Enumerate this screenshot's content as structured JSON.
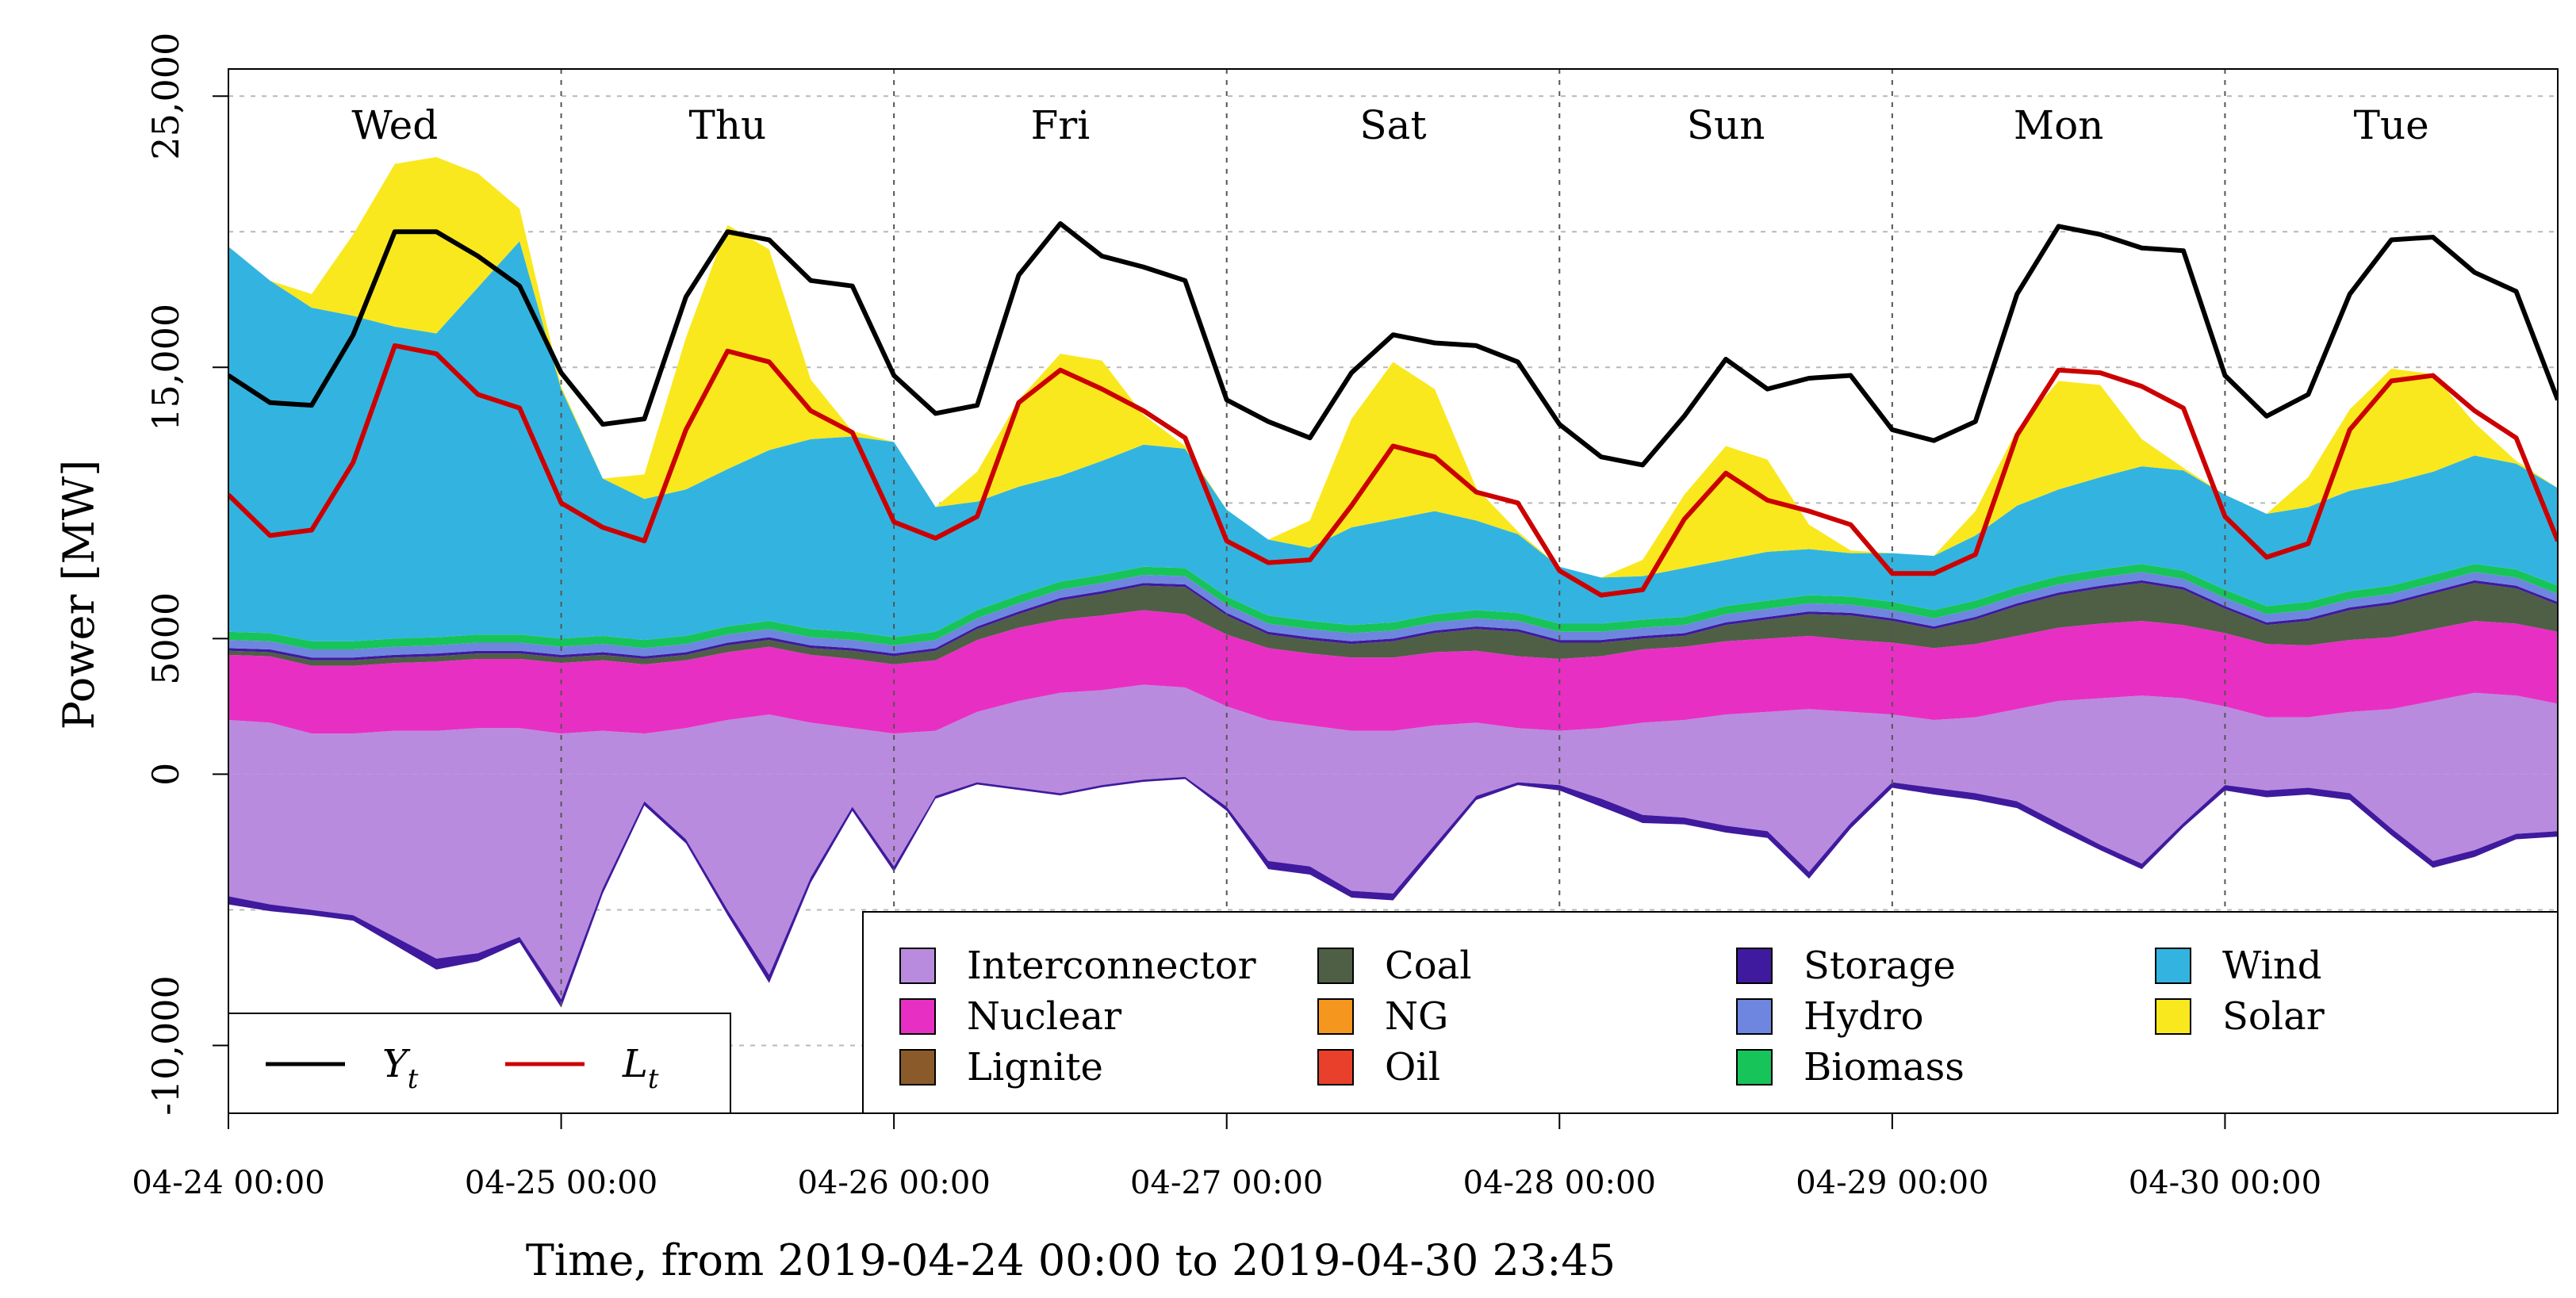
{
  "chart_data": {
    "type": "area",
    "title": "",
    "xlabel": "Time, from 2019-04-24 00:00 to 2019-04-30 23:45",
    "ylabel": "Power [MW]",
    "xlim_hours": [
      0,
      168
    ],
    "ylim": [
      -12500,
      26000
    ],
    "y_ticks": [
      {
        "value": 25000,
        "label": "25,000"
      },
      {
        "value": 15000,
        "label": "15,000"
      },
      {
        "value": 5000,
        "label": "5000"
      },
      {
        "value": 0,
        "label": "0"
      },
      {
        "value": -10000,
        "label": "-10,000"
      }
    ],
    "y_grid_values": [
      25000,
      20000,
      15000,
      10000,
      5000,
      0,
      -5000,
      -10000
    ],
    "x_ticks": [
      {
        "hour": 0,
        "label": "04-24 00:00"
      },
      {
        "hour": 24,
        "label": "04-25 00:00"
      },
      {
        "hour": 48,
        "label": "04-26 00:00"
      },
      {
        "hour": 72,
        "label": "04-27 00:00"
      },
      {
        "hour": 96,
        "label": "04-28 00:00"
      },
      {
        "hour": 120,
        "label": "04-29 00:00"
      },
      {
        "hour": 144,
        "label": "04-30 00:00"
      }
    ],
    "day_labels": [
      {
        "hour": 12,
        "label": "Wed"
      },
      {
        "hour": 36,
        "label": "Thu"
      },
      {
        "hour": 60,
        "label": "Fri"
      },
      {
        "hour": 84,
        "label": "Sat"
      },
      {
        "hour": 108,
        "label": "Sun"
      },
      {
        "hour": 132,
        "label": "Mon"
      },
      {
        "hour": 156,
        "label": "Tue"
      }
    ],
    "day_separators_hours": [
      24,
      48,
      72,
      96,
      120,
      144
    ],
    "x_hours": [
      0,
      3,
      6,
      9,
      12,
      15,
      18,
      21,
      24,
      27,
      30,
      33,
      36,
      39,
      42,
      45,
      48,
      51,
      54,
      57,
      60,
      63,
      66,
      69,
      72,
      75,
      78,
      81,
      84,
      87,
      90,
      93,
      96,
      99,
      102,
      105,
      108,
      111,
      114,
      117,
      120,
      123,
      126,
      129,
      132,
      135,
      138,
      141,
      144,
      147,
      150,
      153,
      156,
      159,
      162,
      165,
      168
    ],
    "series": [
      {
        "name": "Interconnector",
        "color": "#B98BDE",
        "values": [
          2000,
          1900,
          1500,
          1500,
          1600,
          1600,
          1700,
          1700,
          1500,
          1600,
          1500,
          1700,
          2000,
          2200,
          1900,
          1700,
          1500,
          1600,
          2300,
          2700,
          3000,
          3100,
          3300,
          3200,
          2500,
          2000,
          1800,
          1600,
          1600,
          1800,
          1900,
          1700,
          1600,
          1700,
          1900,
          2000,
          2200,
          2300,
          2400,
          2300,
          2200,
          2000,
          2100,
          2400,
          2700,
          2800,
          2900,
          2800,
          2500,
          2100,
          2100,
          2300,
          2400,
          2700,
          3000,
          2900,
          2600
        ]
      },
      {
        "name": "Nuclear",
        "color": "#E82FC4",
        "values": [
          2400,
          2450,
          2500,
          2500,
          2500,
          2550,
          2550,
          2550,
          2600,
          2600,
          2550,
          2500,
          2500,
          2500,
          2500,
          2550,
          2550,
          2600,
          2650,
          2700,
          2700,
          2750,
          2750,
          2700,
          2650,
          2650,
          2650,
          2700,
          2700,
          2700,
          2650,
          2650,
          2650,
          2650,
          2700,
          2700,
          2700,
          2700,
          2700,
          2650,
          2650,
          2650,
          2700,
          2700,
          2700,
          2750,
          2750,
          2700,
          2700,
          2700,
          2650,
          2650,
          2650,
          2650,
          2650,
          2650,
          2650
        ]
      },
      {
        "name": "Lignite",
        "color": "#8B5A2B",
        "values": [
          0,
          0,
          0,
          0,
          0,
          0,
          0,
          0,
          0,
          0,
          0,
          0,
          0,
          0,
          0,
          0,
          0,
          0,
          0,
          0,
          0,
          0,
          0,
          0,
          0,
          0,
          0,
          0,
          0,
          0,
          0,
          0,
          0,
          0,
          0,
          0,
          0,
          0,
          0,
          0,
          0,
          0,
          0,
          0,
          0,
          0,
          0,
          0,
          0,
          0,
          0,
          0,
          0,
          0,
          0,
          0,
          0
        ]
      },
      {
        "name": "Coal",
        "color": "#4F5F45",
        "values": [
          150,
          150,
          200,
          200,
          200,
          200,
          200,
          200,
          200,
          200,
          200,
          200,
          250,
          250,
          250,
          300,
          300,
          350,
          400,
          500,
          700,
          800,
          900,
          1000,
          700,
          500,
          500,
          500,
          600,
          700,
          800,
          900,
          600,
          500,
          400,
          400,
          600,
          700,
          800,
          900,
          800,
          700,
          900,
          1100,
          1200,
          1300,
          1400,
          1300,
          900,
          700,
          900,
          1100,
          1200,
          1300,
          1400,
          1300,
          1000
        ]
      },
      {
        "name": "NG",
        "color": "#F5961E",
        "values": [
          0,
          0,
          0,
          0,
          0,
          0,
          0,
          0,
          0,
          0,
          0,
          0,
          0,
          0,
          0,
          0,
          0,
          0,
          0,
          0,
          0,
          0,
          0,
          0,
          0,
          0,
          0,
          0,
          0,
          0,
          0,
          0,
          0,
          0,
          0,
          0,
          0,
          0,
          0,
          0,
          0,
          0,
          0,
          0,
          0,
          0,
          0,
          0,
          0,
          0,
          0,
          0,
          0,
          0,
          0,
          0,
          0
        ]
      },
      {
        "name": "Oil",
        "color": "#E8402A",
        "values": [
          0,
          0,
          0,
          0,
          0,
          0,
          0,
          0,
          0,
          0,
          0,
          0,
          0,
          0,
          0,
          0,
          0,
          0,
          0,
          0,
          0,
          0,
          0,
          0,
          0,
          0,
          0,
          0,
          0,
          0,
          0,
          0,
          0,
          0,
          0,
          0,
          0,
          0,
          0,
          0,
          0,
          0,
          0,
          0,
          0,
          0,
          0,
          0,
          0,
          0,
          0,
          0,
          0,
          0,
          0,
          0,
          0
        ]
      },
      {
        "name": "Storage",
        "color": "#3F1A9E",
        "values": [
          100,
          100,
          100,
          100,
          100,
          100,
          100,
          100,
          100,
          100,
          100,
          100,
          100,
          100,
          100,
          100,
          100,
          100,
          100,
          100,
          100,
          100,
          100,
          100,
          100,
          100,
          100,
          100,
          100,
          100,
          100,
          100,
          100,
          100,
          100,
          100,
          100,
          100,
          100,
          100,
          100,
          100,
          100,
          100,
          100,
          100,
          100,
          100,
          100,
          100,
          100,
          100,
          100,
          100,
          100,
          100,
          100
        ]
      },
      {
        "name": "Hydro",
        "color": "#6E86E0",
        "values": [
          300,
          300,
          300,
          300,
          300,
          300,
          300,
          300,
          300,
          300,
          300,
          300,
          300,
          300,
          300,
          300,
          300,
          300,
          300,
          300,
          300,
          300,
          300,
          300,
          300,
          300,
          300,
          300,
          300,
          300,
          300,
          300,
          300,
          300,
          300,
          300,
          300,
          300,
          300,
          300,
          300,
          300,
          300,
          300,
          300,
          300,
          300,
          300,
          300,
          300,
          300,
          300,
          300,
          300,
          300,
          300,
          300
        ]
      },
      {
        "name": "Biomass",
        "color": "#17C45A",
        "values": [
          300,
          300,
          300,
          300,
          300,
          300,
          300,
          300,
          300,
          300,
          300,
          300,
          300,
          300,
          300,
          300,
          300,
          300,
          300,
          300,
          300,
          300,
          300,
          300,
          300,
          300,
          300,
          300,
          300,
          300,
          300,
          300,
          300,
          300,
          300,
          300,
          300,
          300,
          300,
          300,
          300,
          300,
          300,
          300,
          300,
          300,
          300,
          300,
          300,
          300,
          300,
          300,
          300,
          300,
          300,
          300,
          300
        ]
      },
      {
        "name": "Wind",
        "color": "#33B4E0",
        "values": [
          14200,
          13000,
          12300,
          12000,
          11500,
          11200,
          12800,
          14500,
          9200,
          5800,
          5200,
          5400,
          5800,
          6300,
          7000,
          7200,
          7200,
          4600,
          4000,
          4000,
          3900,
          4200,
          4500,
          4400,
          3200,
          2800,
          2700,
          3600,
          3800,
          3800,
          3300,
          2900,
          2100,
          1700,
          1600,
          1800,
          1700,
          1800,
          1700,
          1600,
          1800,
          2000,
          2400,
          3000,
          3200,
          3400,
          3600,
          3700,
          3500,
          3400,
          3500,
          3700,
          3800,
          3800,
          4000,
          3900,
          3600
        ]
      },
      {
        "name": "Solar",
        "color": "#F9E81E",
        "values": [
          0,
          0,
          500,
          3000,
          6000,
          6500,
          4200,
          1200,
          100,
          0,
          900,
          5600,
          9000,
          7400,
          2200,
          200,
          0,
          0,
          1100,
          3200,
          4500,
          3700,
          1100,
          100,
          0,
          0,
          1000,
          4000,
          5800,
          4500,
          1200,
          100,
          0,
          0,
          600,
          2700,
          4200,
          3400,
          900,
          100,
          0,
          0,
          900,
          2800,
          4000,
          3400,
          1000,
          100,
          0,
          0,
          1100,
          3000,
          4200,
          3600,
          1200,
          100,
          0
        ]
      }
    ],
    "negative_series": [
      {
        "name": "Interconnector",
        "color": "#B98BDE",
        "values": [
          -4500,
          -4800,
          -5000,
          -5200,
          -6000,
          -6800,
          -6600,
          -6000,
          -8300,
          -4200,
          -1000,
          -2400,
          -5000,
          -7400,
          -3800,
          -1200,
          -3400,
          -800,
          -300,
          -500,
          -700,
          -400,
          -200,
          -100,
          -1200,
          -3200,
          -3400,
          -4300,
          -4400,
          -2600,
          -800,
          -300,
          -400,
          -900,
          -1500,
          -1600,
          -1900,
          -2100,
          -3600,
          -1800,
          -300,
          -500,
          -700,
          -1000,
          -1800,
          -2600,
          -3300,
          -1800,
          -400,
          -600,
          -500,
          -700,
          -2000,
          -3200,
          -2800,
          -2200,
          -2100
        ]
      },
      {
        "name": "Storage",
        "color": "#3F1A9E",
        "values": [
          -300,
          -250,
          -200,
          -200,
          -300,
          -400,
          -300,
          -200,
          -300,
          -200,
          -150,
          -150,
          -200,
          -300,
          -200,
          -150,
          -200,
          -100,
          -80,
          -80,
          -80,
          -80,
          -80,
          -80,
          -150,
          -300,
          -300,
          -250,
          -250,
          -200,
          -150,
          -100,
          -200,
          -300,
          -300,
          -250,
          -250,
          -250,
          -250,
          -200,
          -200,
          -250,
          -250,
          -250,
          -250,
          -200,
          -200,
          -150,
          -200,
          -250,
          -250,
          -250,
          -250,
          -250,
          -250,
          -200,
          -200
        ]
      }
    ],
    "lines": [
      {
        "name": "Y_t",
        "color": "#000000",
        "values": [
          14700,
          13700,
          13600,
          16200,
          20000,
          20000,
          19100,
          18000,
          14800,
          12900,
          13100,
          17600,
          20000,
          19700,
          18200,
          18000,
          14700,
          13300,
          13600,
          18400,
          20300,
          19100,
          18700,
          18200,
          13800,
          13000,
          12400,
          14800,
          16200,
          15900,
          15800,
          15200,
          12900,
          11700,
          11400,
          13200,
          15300,
          14200,
          14600,
          14700,
          12700,
          12300,
          13000,
          17700,
          20200,
          19900,
          19400,
          19300,
          14700,
          13200,
          14000,
          17700,
          19700,
          19800,
          18500,
          17800,
          13800
        ]
      },
      {
        "name": "L_t",
        "color": "#CC0000",
        "values": [
          10300,
          8800,
          9000,
          11500,
          15800,
          15500,
          14000,
          13500,
          10000,
          9100,
          8600,
          12700,
          15600,
          15200,
          13400,
          12600,
          9300,
          8700,
          9500,
          13700,
          14900,
          14200,
          13400,
          12400,
          8600,
          7800,
          7900,
          9900,
          12100,
          11700,
          10400,
          10000,
          7500,
          6600,
          6800,
          9400,
          11100,
          10100,
          9700,
          9200,
          7400,
          7400,
          8100,
          12500,
          14900,
          14800,
          14300,
          13500,
          9500,
          8000,
          8500,
          12700,
          14500,
          14700,
          13400,
          12400,
          8600
        ]
      }
    ],
    "legend": {
      "position": "bottom-right",
      "entries": [
        {
          "label": "Interconnector",
          "color": "#B98BDE"
        },
        {
          "label": "Nuclear",
          "color": "#E82FC4"
        },
        {
          "label": "Lignite",
          "color": "#8B5A2B"
        },
        {
          "label": "Coal",
          "color": "#4F5F45"
        },
        {
          "label": "NG",
          "color": "#F5961E"
        },
        {
          "label": "Oil",
          "color": "#E8402A"
        },
        {
          "label": "Storage",
          "color": "#3F1A9E"
        },
        {
          "label": "Hydro",
          "color": "#6E86E0"
        },
        {
          "label": "Biomass",
          "color": "#17C45A"
        },
        {
          "label": "Wind",
          "color": "#33B4E0"
        },
        {
          "label": "Solar",
          "color": "#F9E81E"
        }
      ]
    },
    "line_legend": {
      "position": "bottom-left",
      "entries": [
        {
          "label": "Y",
          "subscript": "t",
          "color": "#000000"
        },
        {
          "label": "L",
          "subscript": "t",
          "color": "#CC0000"
        }
      ]
    }
  }
}
